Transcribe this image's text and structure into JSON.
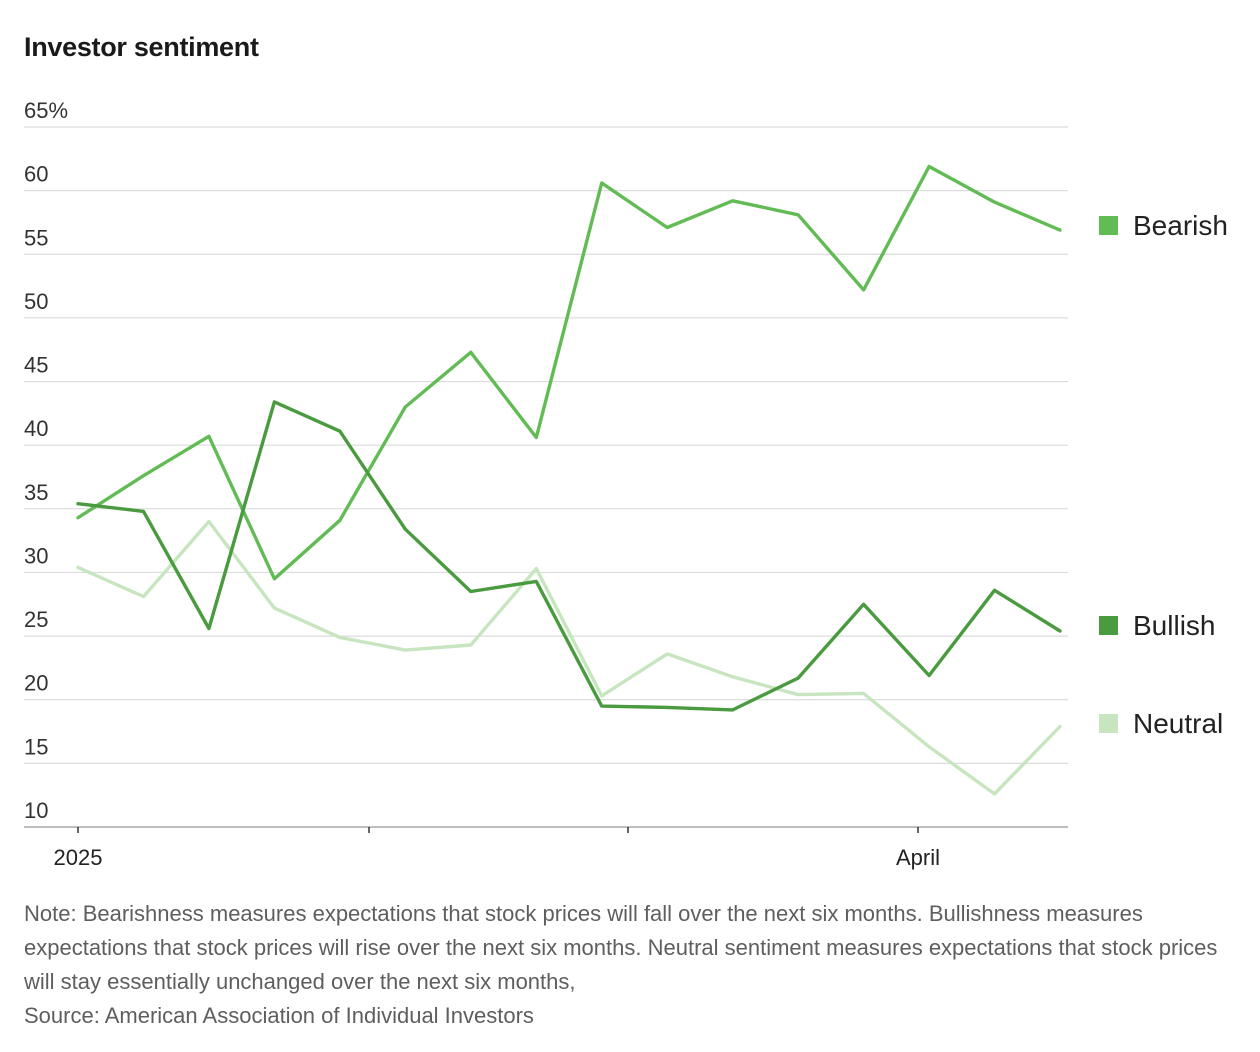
{
  "chart_data": {
    "type": "line",
    "title": "Investor sentiment",
    "xlabel": "",
    "ylabel": "",
    "ylim": [
      10,
      65
    ],
    "y_ticks": [
      "10",
      "15",
      "20",
      "25",
      "30",
      "35",
      "40",
      "45",
      "50",
      "55",
      "60",
      "65%"
    ],
    "x_ticks": [
      "2025",
      "",
      "",
      "April"
    ],
    "grid": true,
    "legend_position": "right",
    "x": [
      0,
      1,
      2,
      3,
      4,
      5,
      6,
      7,
      8,
      9,
      10,
      11,
      12,
      13,
      14,
      15
    ],
    "series": [
      {
        "name": "Bearish",
        "color": "#62bb55",
        "values": [
          34.3,
          37.6,
          40.7,
          29.5,
          34.1,
          43.0,
          47.3,
          40.6,
          60.6,
          57.1,
          59.2,
          58.1,
          52.2,
          61.9,
          59.1,
          56.9
        ]
      },
      {
        "name": "Bullish",
        "color": "#4a9a40",
        "values": [
          35.4,
          34.8,
          25.6,
          43.4,
          41.1,
          33.4,
          28.5,
          29.3,
          19.5,
          19.4,
          19.2,
          21.7,
          27.5,
          21.9,
          28.6,
          25.4
        ]
      },
      {
        "name": "Neutral",
        "color": "#c7e5bf",
        "values": [
          30.4,
          28.1,
          34.0,
          27.2,
          24.9,
          23.9,
          24.3,
          30.3,
          20.3,
          23.6,
          21.8,
          20.4,
          20.5,
          16.3,
          12.6,
          17.9
        ]
      }
    ],
    "note": "Note: Bearishness measures expectations that stock prices will fall over the next six months. Bullishness measures expectations that stock prices will rise over the next six months. Neutral sentiment measures expectations that stock prices will stay essentially unchanged over the next six months,",
    "source": "Source: American Association of Individual Investors"
  }
}
